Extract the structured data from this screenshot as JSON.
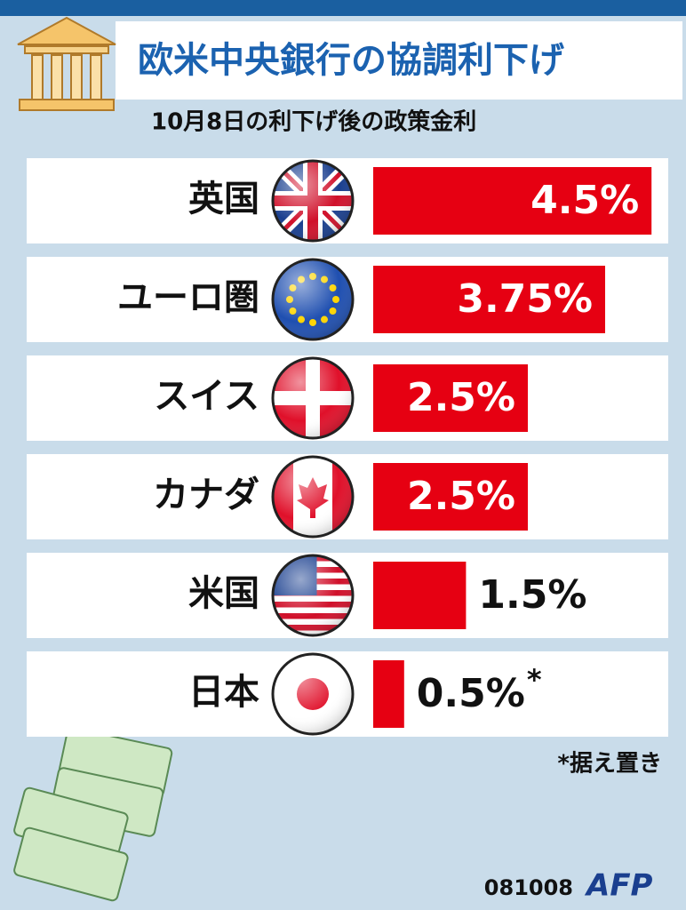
{
  "chart_data": {
    "type": "bar",
    "orientation": "horizontal",
    "title": "欧米中央銀行の協調利下げ",
    "subtitle": "10月8日の利下げ後の政策金利",
    "categories": [
      "英国",
      "ユーロ圏",
      "スイス",
      "カナダ",
      "米国",
      "日本"
    ],
    "values": [
      4.5,
      3.75,
      2.5,
      2.5,
      1.5,
      0.5
    ],
    "value_labels": [
      "4.5%",
      "3.75%",
      "2.5%",
      "2.5%",
      "1.5%",
      "0.5%"
    ],
    "note_marker": "*",
    "footnote": "*据え置き",
    "date_code": "081008",
    "source": "AFP",
    "color": "#e60012"
  }
}
